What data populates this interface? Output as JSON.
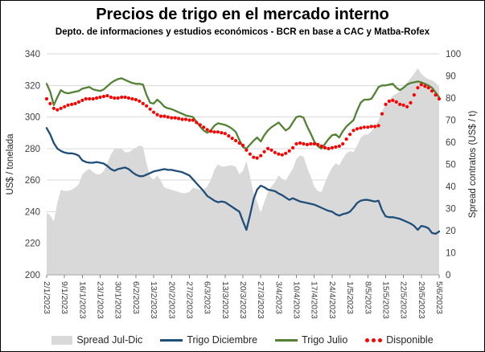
{
  "header": {
    "title": "Precios de trigo en el mercado interno",
    "subtitle": "Depto. de informaciones y estudios económicos - BCR en base a CAC y Matba-Rofex"
  },
  "chart_data": {
    "type": "line",
    "title": "Precios de trigo en el mercado interno",
    "subtitle": "Depto. de informaciones y estudios económicos - BCR en base a CAC y Matba-Rofex",
    "left_axis": {
      "label": "US$ / tonelada",
      "min": 200,
      "max": 340,
      "step": 20
    },
    "right_axis": {
      "label": "Spread contratos (US$ / t)",
      "min": 0,
      "max": 100,
      "step": 10
    },
    "grid": true,
    "legend_position": "bottom",
    "x_tick_labels": [
      "2/1/2023",
      "9/1/2023",
      "16/1/2023",
      "23/1/2023",
      "30/1/2023",
      "6/2/2023",
      "13/2/2023",
      "20/2/2023",
      "27/2/2023",
      "6/3/2023",
      "13/3/2023",
      "20/3/2023",
      "27/3/2023",
      "3/4/2023",
      "10/4/2023",
      "17/4/2023",
      "24/4/2023",
      "1/5/2023",
      "8/5/2023",
      "15/5/2023",
      "22/5/2023",
      "29/5/2023",
      "5/6/2023"
    ],
    "points_per_tick": 5,
    "series": [
      {
        "name": "Spread Jul-Dic",
        "type": "area",
        "axis": "right",
        "color": "#d9d9d9",
        "values": [
          28,
          27,
          24,
          32.5,
          38.5,
          38,
          38,
          38.5,
          39.5,
          41,
          45.5,
          47,
          48,
          46.5,
          45.5,
          45.5,
          47,
          50.5,
          54.5,
          57,
          57,
          57,
          55.5,
          55.5,
          56.5,
          57.5,
          58.5,
          58,
          50.5,
          44.5,
          43,
          45,
          42.5,
          39.5,
          39,
          38.5,
          38,
          37.5,
          37,
          37,
          37.5,
          39.5,
          39,
          38.5,
          38.5,
          40,
          43,
          47.5,
          50,
          49,
          49,
          49.5,
          49.5,
          49,
          45.5,
          47,
          51.5,
          44.5,
          37,
          33,
          28,
          33,
          37.5,
          40,
          42,
          45,
          43.5,
          42.5,
          45.5,
          48,
          52.5,
          54,
          53.5,
          48.5,
          44.5,
          40,
          38,
          37.5,
          41.5,
          45.5,
          48.5,
          50.5,
          49.5,
          52.5,
          55,
          56,
          55.5,
          58.5,
          62,
          63.5,
          63.5,
          65,
          67,
          70,
          74,
          77,
          79,
          81,
          82,
          83,
          85,
          87,
          89,
          91,
          93.5,
          91,
          89.5,
          88.5,
          88,
          87,
          85
        ]
      },
      {
        "name": "Trigo Diciembre",
        "type": "line",
        "axis": "left",
        "color": "#1f4e79",
        "values": [
          293,
          289,
          283.5,
          280,
          278.5,
          277.5,
          277,
          277,
          276.5,
          275.5,
          272.5,
          271.5,
          271,
          271,
          271.5,
          271,
          270.5,
          269,
          267,
          266,
          267,
          267.5,
          268,
          267,
          265,
          263.5,
          262.5,
          262.5,
          263.5,
          264.5,
          265.5,
          266,
          266.5,
          267,
          266.5,
          266.5,
          266,
          265.5,
          265,
          264,
          263,
          260.5,
          258,
          255.5,
          253,
          250,
          248.5,
          247,
          246,
          246.5,
          246,
          244.5,
          243,
          241.5,
          240,
          234,
          228.5,
          238,
          248,
          254,
          256.5,
          255.5,
          254,
          253.5,
          253,
          251.5,
          250.5,
          249,
          247.5,
          248.5,
          247.5,
          246.5,
          246,
          245.5,
          245,
          244.5,
          243.5,
          242.5,
          241.5,
          240.5,
          240,
          238.5,
          237.5,
          238.5,
          239,
          240,
          242.5,
          245.5,
          247,
          247.5,
          247.5,
          247,
          246.5,
          247,
          241,
          237,
          236.5,
          236.5,
          236,
          235.5,
          234.5,
          233.5,
          232.5,
          231,
          228.5,
          231,
          230.5,
          229.5,
          226.5,
          226,
          227.5
        ]
      },
      {
        "name": "Trigo Julio",
        "type": "line",
        "axis": "left",
        "color": "#548235",
        "values": [
          321,
          316,
          307.5,
          312.5,
          317,
          315.5,
          315,
          315.5,
          316,
          316.5,
          318,
          318.5,
          319,
          317.5,
          317,
          316.5,
          317.5,
          319.5,
          321.5,
          323,
          324,
          324.5,
          323.5,
          322.5,
          321.5,
          321,
          321,
          320.5,
          314,
          309,
          308.5,
          311,
          309,
          306.5,
          305.5,
          305,
          304,
          303,
          302,
          301,
          300.5,
          300,
          297,
          294,
          291.5,
          290,
          291.5,
          294.5,
          296,
          295.5,
          295,
          294,
          292.5,
          290.5,
          285.5,
          281,
          280,
          282.5,
          285,
          287,
          284.5,
          288.5,
          291.5,
          293.5,
          295,
          296.5,
          294,
          291.5,
          293,
          296.5,
          300,
          300.5,
          299.5,
          294,
          289.5,
          284.5,
          281.5,
          280,
          283,
          286,
          288.5,
          289,
          287,
          291,
          294,
          296,
          298,
          304,
          309,
          311,
          311,
          311.5,
          315,
          319,
          320,
          320,
          320.5,
          321,
          318.5,
          317,
          318.5,
          320.5,
          321.5,
          322,
          322.5,
          322,
          321,
          320,
          318.5,
          315.5,
          312.5
        ]
      },
      {
        "name": "Disponible",
        "type": "dots",
        "axis": "left",
        "color": "#ff0000",
        "values": [
          311.5,
          308.5,
          305.5,
          304.5,
          305.5,
          306.5,
          307.5,
          308,
          308.5,
          309.5,
          310.5,
          311.5,
          311.5,
          311.5,
          312,
          312.5,
          313,
          313.5,
          312.5,
          312,
          312,
          312.5,
          312.5,
          312,
          311.5,
          311,
          310,
          308.5,
          307,
          305,
          303,
          301.5,
          300.5,
          300.5,
          300,
          299.5,
          299.5,
          299,
          298.5,
          298.5,
          298,
          298,
          296.5,
          295,
          293.5,
          292,
          291,
          290.5,
          290.5,
          290,
          289.5,
          288,
          286.5,
          285,
          283.5,
          282,
          279,
          276.5,
          274.5,
          274,
          275.5,
          278,
          280,
          279,
          277.5,
          276.5,
          276,
          277,
          278.5,
          280.5,
          283,
          283.5,
          283,
          282.5,
          283,
          283,
          282.5,
          281.5,
          280.5,
          280,
          280.5,
          281,
          281.5,
          283,
          286,
          289,
          291.5,
          292.5,
          293,
          293.5,
          293.5,
          294,
          294,
          294.5,
          302,
          308,
          310,
          310.5,
          309.5,
          308,
          307.5,
          306.5,
          309,
          314,
          318.5,
          320.5,
          319.5,
          318.5,
          316.5,
          314,
          311.5
        ]
      }
    ],
    "colors": {
      "grid": "#d9d9d9",
      "axis_line": "#a6a6a6",
      "tick_text": "#404040",
      "spread_fill": "#d9d9d9",
      "diciembre": "#1f4e79",
      "julio": "#548235",
      "disponible": "#ff0000"
    }
  }
}
